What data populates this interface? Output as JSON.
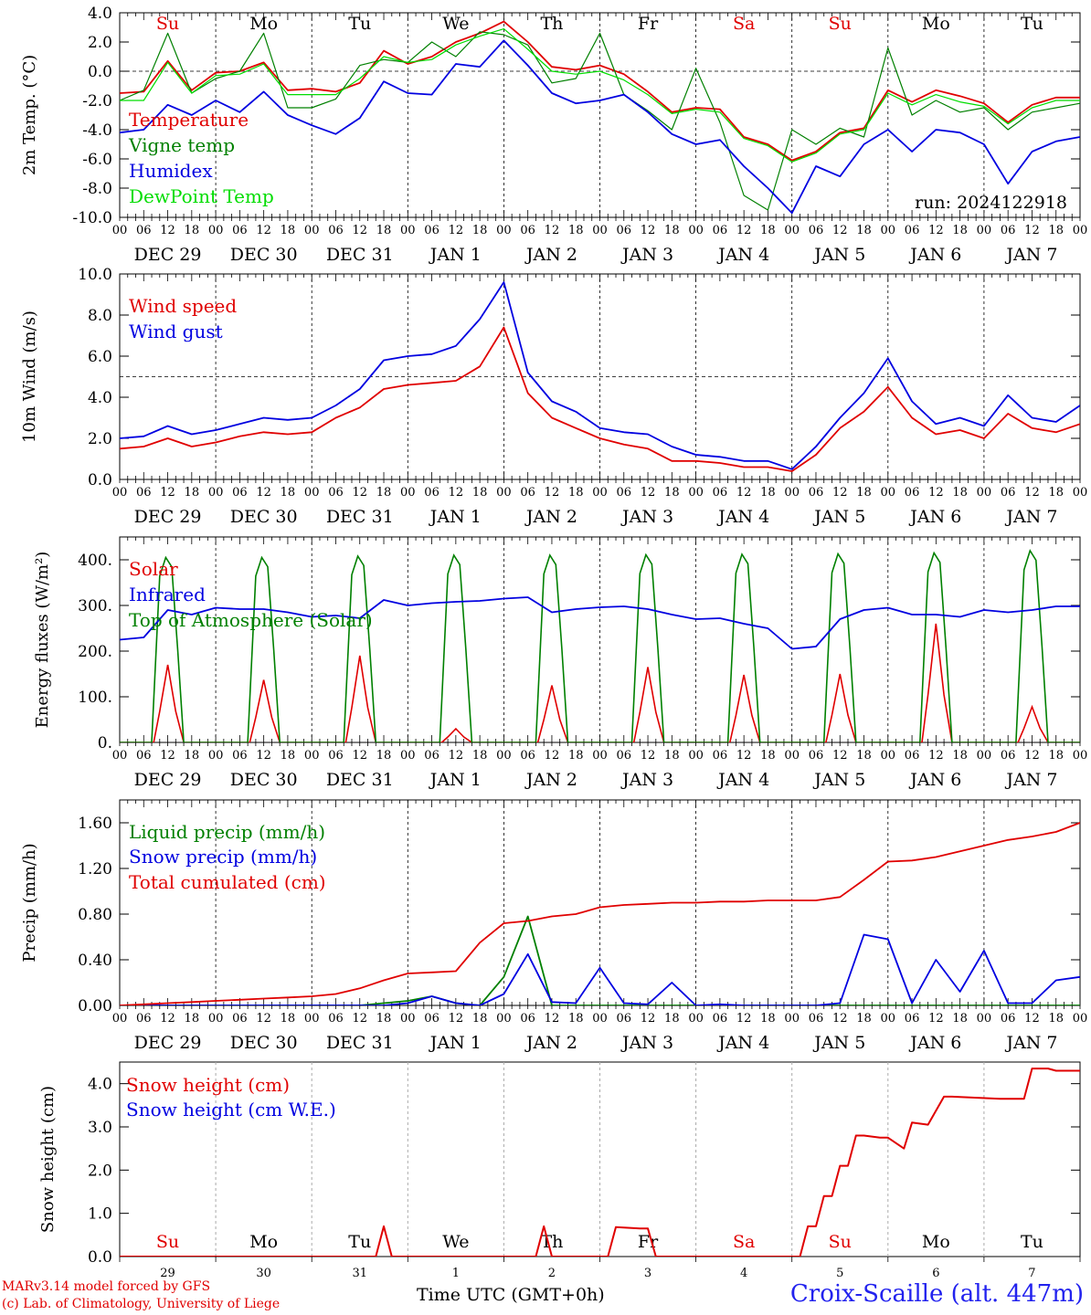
{
  "footer": {
    "model": "MARv3.14 model forced by GFS",
    "lab": "(c) Lab. of Climatology, University of Liege",
    "xlabel": "Time UTC (GMT+0h)",
    "station": "Croix-Scaille (alt. 447m)"
  },
  "hour_ticks": [
    "00",
    "06",
    "12",
    "18"
  ],
  "date_labels": [
    "DEC 29",
    "DEC 30",
    "DEC 31",
    "JAN  1",
    "JAN  2",
    "JAN  3",
    "JAN  4",
    "JAN  5",
    "JAN  6",
    "JAN  7"
  ],
  "weekdays": [
    "Su",
    "Mo",
    "Tu",
    "We",
    "Th",
    "Fr",
    "Sa",
    "Su",
    "Mo",
    "Tu"
  ],
  "weekday_colors": [
    "#e00000",
    "#000000",
    "#000000",
    "#000000",
    "#000000",
    "#000000",
    "#e00000",
    "#e00000",
    "#000000",
    "#000000"
  ],
  "day_numbers": [
    "29",
    "30",
    "31",
    "1",
    "2",
    "3",
    "4",
    "5",
    "6",
    "7"
  ],
  "day_numbers_label": "JAN",
  "colors": {
    "red": "#e00000",
    "green": "#008000",
    "blue": "#0000e0",
    "lightgreen": "#00dd00"
  },
  "chart_data": [
    {
      "type": "line",
      "ylabel": "2m Temp. (°C)",
      "ylim": [
        -10,
        4
      ],
      "yticks": [
        "4.0",
        "2.0",
        "0.0",
        "-2.0",
        "-4.0",
        "-6.0",
        "-8.0",
        "-10.0"
      ],
      "ytick_values": [
        4,
        2,
        0,
        -2,
        -4,
        -6,
        -8,
        -10
      ],
      "ref_line": 0,
      "run_label": "run: 2024122918",
      "x_hours": [
        0,
        6,
        12,
        18,
        24,
        30,
        36,
        42,
        48,
        54,
        60,
        66,
        72,
        78,
        84,
        90,
        96,
        102,
        108,
        114,
        120,
        126,
        132,
        138,
        144,
        150,
        156,
        162,
        168,
        174,
        180,
        186,
        192,
        198,
        204,
        210,
        216,
        222,
        228,
        234,
        240
      ],
      "series": [
        {
          "name": "Temperature",
          "color": "#e00000",
          "values": [
            -1.5,
            -1.4,
            0.7,
            -1.3,
            -0.1,
            0.0,
            0.6,
            -1.3,
            -1.2,
            -1.4,
            -0.8,
            1.4,
            0.5,
            1.0,
            2.0,
            2.6,
            3.4,
            2.0,
            0.3,
            0.1,
            0.4,
            -0.2,
            -1.4,
            -2.8,
            -2.5,
            -2.6,
            -4.5,
            -5.0,
            -6.1,
            -5.5,
            -4.2,
            -3.9,
            -1.3,
            -2.1,
            -1.3,
            -1.7,
            -2.2,
            -3.5,
            -2.3,
            -1.8,
            -1.8
          ]
        },
        {
          "name": "Vigne temp",
          "color": "#008000",
          "values": [
            -2.0,
            -1.3,
            2.6,
            -1.5,
            -0.5,
            0.0,
            2.6,
            -2.5,
            -2.5,
            -1.9,
            0.4,
            0.8,
            0.6,
            2.0,
            1.0,
            2.7,
            2.5,
            1.8,
            -0.8,
            -0.5,
            2.6,
            -1.6,
            -2.7,
            -4.0,
            0.2,
            -3.5,
            -8.5,
            -9.5,
            -4.0,
            -5.0,
            -3.9,
            -4.5,
            1.6,
            -3.0,
            -2.0,
            -2.8,
            -2.5,
            -4.0,
            -2.8,
            -2.5,
            -2.2
          ]
        },
        {
          "name": "Humidex",
          "color": "#0000e0",
          "values": [
            -4.2,
            -4.0,
            -2.3,
            -3.0,
            -2.0,
            -2.8,
            -1.4,
            -3.0,
            -3.7,
            -4.3,
            -3.2,
            -0.7,
            -1.5,
            -1.6,
            0.5,
            0.3,
            2.1,
            0.4,
            -1.5,
            -2.2,
            -2.0,
            -1.6,
            -2.8,
            -4.3,
            -5.0,
            -4.7,
            -6.5,
            -8.0,
            -9.7,
            -6.5,
            -7.2,
            -5.0,
            -4.0,
            -5.5,
            -4.0,
            -4.2,
            -5.0,
            -7.7,
            -5.5,
            -4.8,
            -4.5
          ]
        },
        {
          "name": "DewPoint Temp",
          "color": "#00dd00",
          "values": [
            -2.0,
            -2.0,
            0.6,
            -1.5,
            -0.3,
            -0.2,
            0.5,
            -1.6,
            -1.6,
            -1.6,
            -0.5,
            1.0,
            0.6,
            0.8,
            1.8,
            2.4,
            2.9,
            1.5,
            0.0,
            -0.2,
            0.0,
            -0.6,
            -1.6,
            -2.9,
            -2.6,
            -2.8,
            -4.6,
            -5.1,
            -6.2,
            -5.6,
            -4.3,
            -4.0,
            -1.5,
            -2.3,
            -1.6,
            -2.1,
            -2.4,
            -3.6,
            -2.5,
            -2.0,
            -2.0
          ]
        }
      ]
    },
    {
      "type": "line",
      "ylabel": "10m Wind (m/s)",
      "ylim": [
        0,
        10
      ],
      "yticks": [
        "10.0",
        "8.0",
        "6.0",
        "4.0",
        "2.0",
        "0.0"
      ],
      "ytick_values": [
        10,
        8,
        6,
        4,
        2,
        0
      ],
      "ref_line": 5,
      "x_hours": [
        0,
        6,
        12,
        18,
        24,
        30,
        36,
        42,
        48,
        54,
        60,
        66,
        72,
        78,
        84,
        90,
        96,
        102,
        108,
        114,
        120,
        126,
        132,
        138,
        144,
        150,
        156,
        162,
        168,
        174,
        180,
        186,
        192,
        198,
        204,
        210,
        216,
        222,
        228,
        234,
        240
      ],
      "series": [
        {
          "name": "Wind speed",
          "color": "#e00000",
          "values": [
            1.5,
            1.6,
            2.0,
            1.6,
            1.8,
            2.1,
            2.3,
            2.2,
            2.3,
            3.0,
            3.5,
            4.4,
            4.6,
            4.7,
            4.8,
            5.5,
            7.4,
            4.2,
            3.0,
            2.5,
            2.0,
            1.7,
            1.5,
            0.9,
            0.9,
            0.8,
            0.6,
            0.6,
            0.4,
            1.2,
            2.5,
            3.3,
            4.5,
            3.0,
            2.2,
            2.4,
            2.0,
            3.2,
            2.5,
            2.3,
            2.7
          ]
        },
        {
          "name": "Wind gust",
          "color": "#0000e0",
          "values": [
            2.0,
            2.1,
            2.6,
            2.2,
            2.4,
            2.7,
            3.0,
            2.9,
            3.0,
            3.6,
            4.4,
            5.8,
            6.0,
            6.1,
            6.5,
            7.8,
            9.6,
            5.2,
            3.8,
            3.3,
            2.5,
            2.3,
            2.2,
            1.6,
            1.2,
            1.1,
            0.9,
            0.9,
            0.5,
            1.6,
            3.0,
            4.2,
            5.9,
            3.8,
            2.7,
            3.0,
            2.6,
            4.1,
            3.0,
            2.8,
            3.6
          ]
        }
      ]
    },
    {
      "type": "line",
      "ylabel": "Energy fluxes (W/m²)",
      "ylim": [
        0,
        450
      ],
      "yticks": [
        "400.",
        "300.",
        "200.",
        "100.",
        "0."
      ],
      "ytick_values": [
        400,
        300,
        200,
        100,
        0
      ],
      "diurnal": [
        {
          "name": "Solar",
          "color": "#e00000",
          "peaks": [
            170,
            137,
            190,
            30,
            125,
            165,
            148,
            150,
            260,
            78
          ]
        },
        {
          "name": "Top of Atmosphere (Solar)",
          "color": "#008000",
          "peaks": [
            405,
            405,
            408,
            410,
            410,
            411,
            412,
            413,
            415,
            420
          ]
        }
      ],
      "x_hours": [
        0,
        6,
        12,
        18,
        24,
        30,
        36,
        42,
        48,
        54,
        60,
        66,
        72,
        78,
        84,
        90,
        96,
        102,
        108,
        114,
        120,
        126,
        132,
        138,
        144,
        150,
        156,
        162,
        168,
        174,
        180,
        186,
        192,
        198,
        204,
        210,
        216,
        222,
        228,
        234,
        240
      ],
      "series": [
        {
          "name": "Infrared",
          "color": "#0000e0",
          "values": [
            225,
            230,
            290,
            280,
            295,
            292,
            292,
            285,
            275,
            278,
            272,
            312,
            300,
            305,
            308,
            310,
            315,
            318,
            285,
            292,
            296,
            298,
            292,
            280,
            270,
            272,
            260,
            250,
            205,
            210,
            270,
            290,
            295,
            280,
            280,
            275,
            290,
            285,
            290,
            298,
            298
          ]
        }
      ]
    },
    {
      "type": "line",
      "ylabel": "Precip (mm/h)",
      "ylim": [
        0,
        1.8
      ],
      "yticks": [
        "1.60",
        "1.20",
        "0.80",
        "0.40",
        "0.00"
      ],
      "ytick_values": [
        1.6,
        1.2,
        0.8,
        0.4,
        0
      ],
      "x_hours": [
        0,
        6,
        12,
        18,
        24,
        30,
        36,
        42,
        48,
        54,
        60,
        66,
        72,
        78,
        84,
        90,
        96,
        102,
        108,
        114,
        120,
        126,
        132,
        138,
        144,
        150,
        156,
        162,
        168,
        174,
        180,
        186,
        192,
        198,
        204,
        210,
        216,
        222,
        228,
        234,
        240
      ],
      "series": [
        {
          "name": "Liquid precip (mm/h)",
          "color": "#008000",
          "values": [
            0,
            0,
            0,
            0,
            0,
            0,
            0,
            0,
            0,
            0,
            0,
            0.02,
            0.04,
            0.08,
            0.02,
            0,
            0.25,
            0.78,
            0,
            0,
            0,
            0,
            0,
            0,
            0,
            0,
            0,
            0,
            0,
            0,
            0,
            0,
            0,
            0,
            0,
            0,
            0,
            0,
            0,
            0,
            0
          ]
        },
        {
          "name": "Snow precip (mm/h)",
          "color": "#0000e0",
          "values": [
            0,
            0,
            0,
            0,
            0,
            0,
            0,
            0,
            0,
            0,
            0,
            0,
            0.02,
            0.08,
            0.02,
            0,
            0.1,
            0.45,
            0.03,
            0.02,
            0.33,
            0.02,
            0.01,
            0.2,
            0,
            0.01,
            0,
            0,
            0,
            0,
            0.02,
            0.62,
            0.58,
            0.02,
            0.4,
            0.12,
            0.48,
            0.02,
            0.02,
            0.22,
            0.25
          ]
        },
        {
          "name": "Total cumulated (cm)",
          "color": "#e00000",
          "values": [
            0.0,
            0.01,
            0.02,
            0.03,
            0.04,
            0.05,
            0.06,
            0.07,
            0.08,
            0.1,
            0.15,
            0.22,
            0.28,
            0.29,
            0.3,
            0.55,
            0.72,
            0.74,
            0.78,
            0.8,
            0.86,
            0.88,
            0.89,
            0.9,
            0.9,
            0.91,
            0.91,
            0.92,
            0.92,
            0.92,
            0.95,
            1.1,
            1.26,
            1.27,
            1.3,
            1.35,
            1.4,
            1.45,
            1.48,
            1.52,
            1.6
          ]
        }
      ]
    },
    {
      "type": "line",
      "ylabel": "Snow height (cm)",
      "ylim": [
        0,
        4.5
      ],
      "yticks": [
        "4.0",
        "3.0",
        "2.0",
        "1.0",
        "0.0"
      ],
      "ytick_values": [
        4,
        3,
        2,
        1,
        0
      ],
      "x_hours": [
        0,
        60,
        64,
        66,
        68,
        70,
        72,
        102,
        104,
        106,
        108,
        110,
        112,
        122,
        124,
        130,
        132,
        134,
        136,
        170,
        172,
        174,
        176,
        178,
        180,
        182,
        184,
        186,
        190,
        192,
        196,
        198,
        202,
        206,
        208,
        220,
        222,
        226,
        228,
        232,
        234,
        240
      ],
      "series": [
        {
          "name": "Snow height (cm)",
          "color": "#e00000",
          "values": [
            0,
            0,
            0,
            0.7,
            0,
            0,
            0,
            0,
            0,
            0.7,
            0,
            0,
            0,
            0,
            0.68,
            0.65,
            0.65,
            0,
            0,
            0,
            0.7,
            0.7,
            1.4,
            1.4,
            2.1,
            2.1,
            2.8,
            2.8,
            2.75,
            2.75,
            2.5,
            3.1,
            3.05,
            3.7,
            3.7,
            3.65,
            3.65,
            3.65,
            4.35,
            4.35,
            4.3,
            4.3
          ]
        },
        {
          "name": "Snow height (cm W.E.)",
          "color": "#0000e0",
          "values": []
        }
      ]
    }
  ]
}
